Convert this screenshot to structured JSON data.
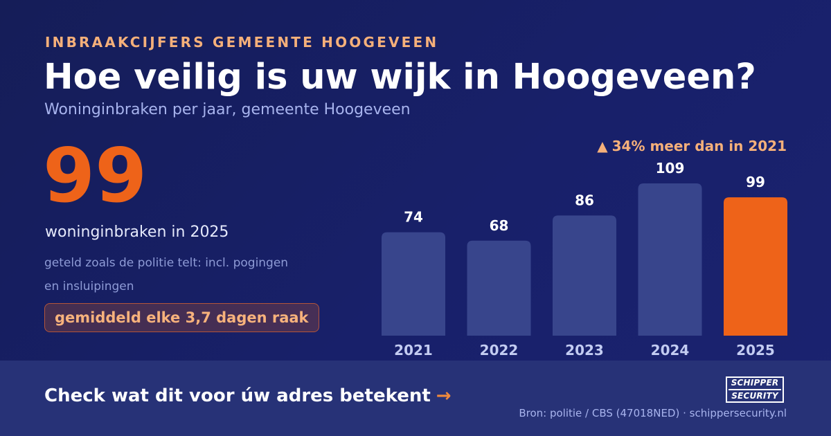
{
  "header": {
    "eyebrow": "INBRAAKCIJFERS GEMEENTE HOOGEVEEN",
    "title": "Hoe veilig is uw wijk in Hoogeveen?",
    "subtitle": "Woninginbraken per jaar, gemeente Hoogeveen"
  },
  "highlight": {
    "value": "99",
    "label": "woninginbraken in 2025",
    "note": "geteld zoals de politie telt: incl. pogingen en insluipingen",
    "badge": "gemiddeld elke 3,7 dagen raak"
  },
  "change": {
    "arrow": "▲",
    "text": "34% meer dan in 2021"
  },
  "chart_data": {
    "type": "bar",
    "title": "",
    "xlabel": "",
    "ylabel": "",
    "categories": [
      "2021",
      "2022",
      "2023",
      "2024",
      "2025"
    ],
    "values": [
      74,
      68,
      86,
      109,
      99
    ],
    "highlight_category": "2025",
    "data_labels": true,
    "grid": false,
    "colors": {
      "default": "#38458c",
      "highlight": "#ee6319"
    }
  },
  "footer": {
    "cta": "Check wat dit voor úw adres betekent",
    "cta_arrow": "→",
    "logo_line1": "SCHIPPER",
    "logo_line2": "SECURITY",
    "source": "Bron: politie / CBS (47018NED) · schippersecurity.nl"
  }
}
